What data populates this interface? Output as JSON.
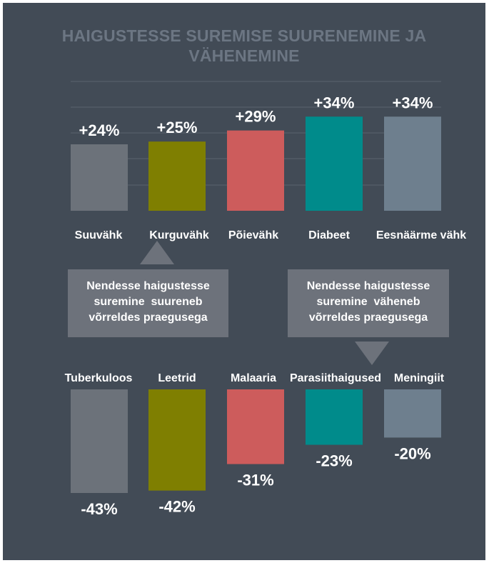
{
  "title": [
    "HAIGUSTESSE SUREMISE SUURENEMINE JA",
    "VÄHENEMINE"
  ],
  "callouts": {
    "increase": [
      "Nendesse haigustesse",
      "suremine  suureneb",
      "võrreldes praegusega"
    ],
    "decrease": [
      "Nendesse haigustesse",
      "suremine  väheneb",
      "võrreldes praegusega"
    ]
  },
  "colors": {
    "background": "#424b56",
    "title": "#6c7683",
    "callout": "#6d727b",
    "series": [
      "#6c727a",
      "#7f7f01",
      "#cd5c5c",
      "#008b8b",
      "#6e7f8e"
    ]
  },
  "chart_data": [
    {
      "type": "bar",
      "categories": [
        "Suuvähk",
        "Kurguvähk",
        "Põievähk",
        "Diabeet",
        "Eesnäärme vähk"
      ],
      "values": [
        24,
        25,
        29,
        34,
        34
      ],
      "labels": [
        "+24%",
        "+25%",
        "+29%",
        "+34%",
        "+34%"
      ],
      "unit": "%",
      "ylim": [
        0,
        40
      ],
      "grid": true
    },
    {
      "type": "bar",
      "categories": [
        "Tuberkuloos",
        "Leetrid",
        "Malaaria",
        "Parasiithaigused",
        "Meningiit"
      ],
      "values": [
        -43,
        -42,
        -31,
        -23,
        -20
      ],
      "labels": [
        "-43%",
        "-42%",
        "-31%",
        "-23%",
        "-20%"
      ],
      "unit": "%",
      "ylim": [
        -45,
        0
      ],
      "grid": false
    }
  ]
}
